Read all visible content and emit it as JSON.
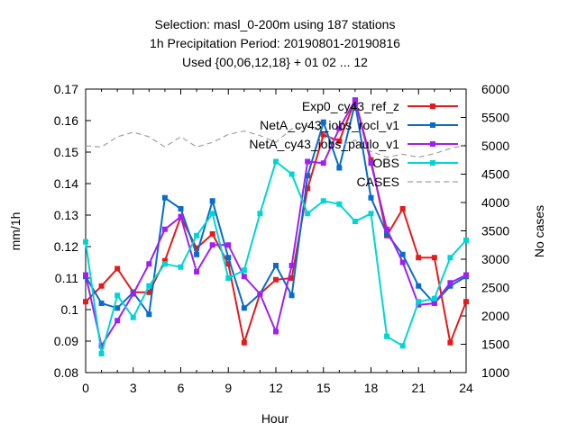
{
  "chart_data": {
    "type": "line",
    "title_lines": [
      "Selection: masl_0-200m using   187 stations",
      "1h Precipitation    Period: 20190801-20190816",
      "Used {00,06,12,18} + 01 02 ... 12"
    ],
    "xlabel": "Hour",
    "ylabel": "mm/1h",
    "y2label": "No cases",
    "xlim": [
      0,
      24
    ],
    "ylim": [
      0.08,
      0.17
    ],
    "y2lim": [
      1000,
      6000
    ],
    "x_ticks": [
      "0",
      "3",
      "6",
      "9",
      "12",
      "15",
      "18",
      "21",
      "24"
    ],
    "y_ticks": [
      "0.08",
      "0.09",
      "0.1",
      "0.11",
      "0.12",
      "0.13",
      "0.14",
      "0.15",
      "0.16",
      "0.17"
    ],
    "y2_ticks": [
      "1000",
      "1500",
      "2000",
      "2500",
      "3000",
      "3500",
      "4000",
      "4500",
      "5000",
      "5500",
      "6000"
    ],
    "x": [
      0,
      1,
      2,
      3,
      4,
      5,
      6,
      7,
      8,
      9,
      10,
      11,
      12,
      13,
      14,
      15,
      16,
      17,
      18,
      19,
      20,
      21,
      22,
      23,
      24
    ],
    "series": [
      {
        "name": "Exp0_cy43_ref_z",
        "color": "#e41a1c",
        "values": [
          0.1025,
          0.1075,
          0.113,
          0.1055,
          0.1055,
          0.1155,
          0.1295,
          0.1195,
          0.124,
          0.1145,
          0.0895,
          0.105,
          0.1095,
          0.11,
          0.1385,
          0.1555,
          0.1535,
          0.1665,
          0.1475,
          0.1235,
          0.132,
          0.1165,
          0.1165,
          0.0895,
          0.1025
        ]
      },
      {
        "name": "NetA_cy43_iobs_rocl_v1",
        "color": "#0a6cc9",
        "values": [
          0.1105,
          0.102,
          0.1005,
          0.1055,
          0.0985,
          0.1355,
          0.132,
          0.1175,
          0.1345,
          0.1165,
          0.1005,
          0.105,
          0.114,
          0.1045,
          0.1425,
          0.1595,
          0.145,
          0.1655,
          0.1355,
          0.124,
          0.1175,
          0.1075,
          0.102,
          0.1075,
          0.1105
        ]
      },
      {
        "name": "NetA_cy43_iobs_paulo_v1",
        "color": "#a020f0",
        "values": [
          0.111,
          0.0885,
          0.0965,
          0.105,
          0.1145,
          0.1255,
          0.1295,
          0.112,
          0.1205,
          0.1205,
          0.1105,
          0.105,
          0.093,
          0.114,
          0.147,
          0.1465,
          0.1575,
          0.1665,
          0.1465,
          0.1255,
          0.115,
          0.1015,
          0.102,
          0.1085,
          0.111
        ]
      },
      {
        "name": "OBS",
        "color": "#00d5d5",
        "values": [
          0.1215,
          0.086,
          0.1045,
          0.0975,
          0.1075,
          0.1145,
          0.1135,
          0.1235,
          0.1305,
          0.11,
          0.1125,
          0.1305,
          0.147,
          0.143,
          0.1305,
          0.1345,
          0.1335,
          0.128,
          0.1305,
          0.0915,
          0.0885,
          0.1025,
          0.1035,
          0.1165,
          0.122
        ]
      },
      {
        "name": "CASES",
        "color": "#a0a0a0",
        "axis": "y2",
        "values": [
          5000,
          4980,
          5160,
          5240,
          5160,
          4980,
          5160,
          4980,
          5060,
          5200,
          5260,
          5180,
          5060,
          5300,
          5350,
          5240,
          5000,
          5100,
          4900,
          4800,
          4850,
          4800,
          4860,
          4950,
          5020
        ]
      }
    ],
    "legend_position": "top-right"
  }
}
